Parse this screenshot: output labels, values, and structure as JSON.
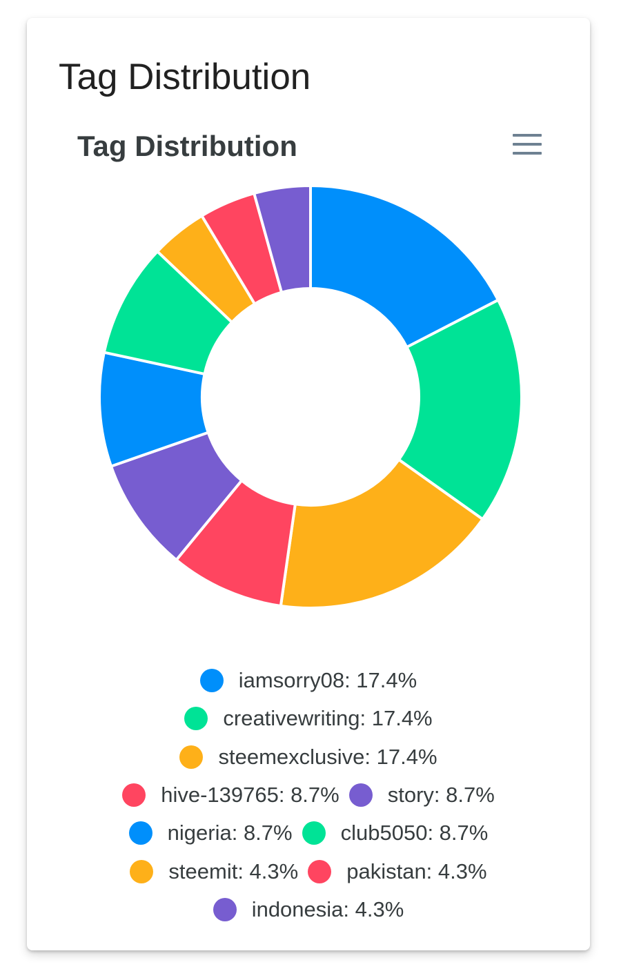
{
  "card": {
    "title": "Tag Distribution"
  },
  "chart_data": {
    "type": "pie",
    "variant": "donut",
    "title": "Tag Distribution",
    "labels": [
      "iamsorry08",
      "creativewriting",
      "steemexclusive",
      "hive-139765",
      "story",
      "nigeria",
      "club5050",
      "steemit",
      "pakistan",
      "indonesia"
    ],
    "values": [
      17.4,
      17.4,
      17.4,
      8.7,
      8.7,
      8.7,
      8.7,
      4.3,
      4.3,
      4.3
    ],
    "colors": [
      "#008FFB",
      "#00E396",
      "#FEB019",
      "#FF4560",
      "#775DD0",
      "#008FFB",
      "#00E396",
      "#FEB019",
      "#FF4560",
      "#775DD0"
    ],
    "legend_labels": [
      "iamsorry08: 17.4%",
      "creativewriting: 17.4%",
      "steemexclusive: 17.4%",
      "hive-139765: 8.7%",
      "story: 8.7%",
      "nigeria: 8.7%",
      "club5050: 8.7%",
      "steemit: 4.3%",
      "pakistan: 4.3%",
      "indonesia: 4.3%"
    ],
    "legend_position": "bottom"
  },
  "toolbar": {
    "menu_icon": "hamburger-menu-icon"
  }
}
